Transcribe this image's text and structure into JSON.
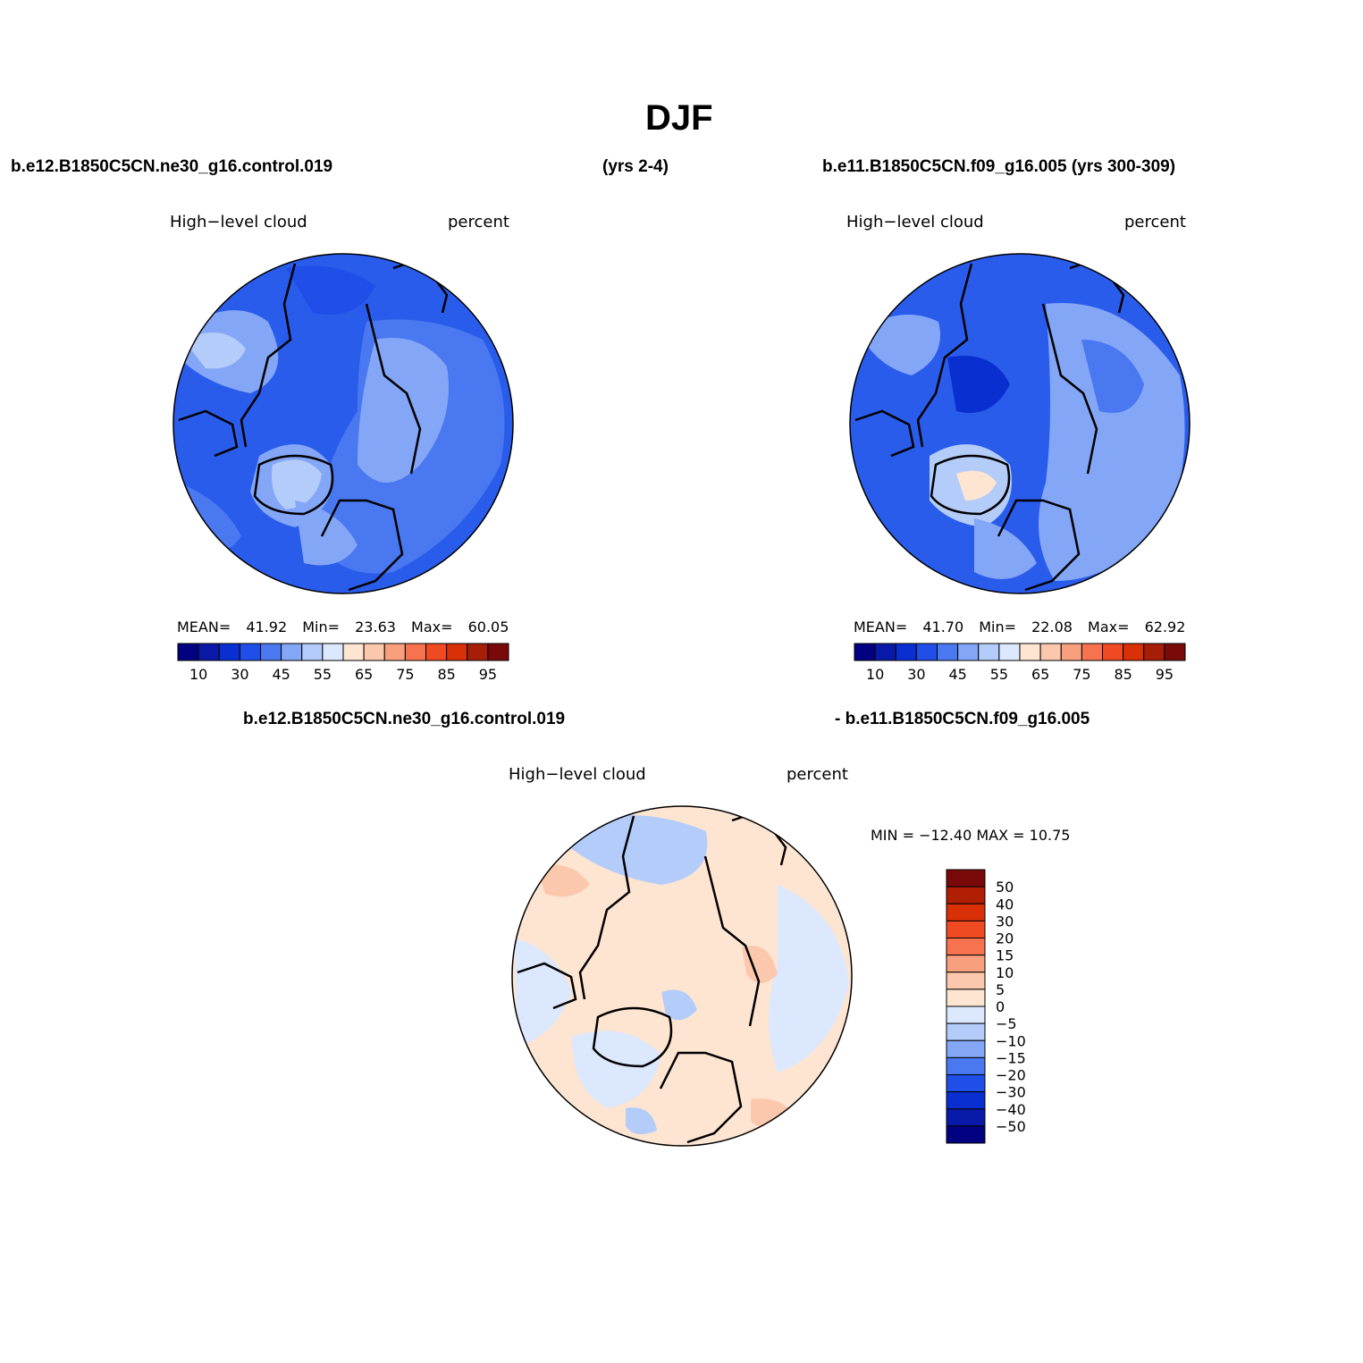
{
  "page_title": "DJF",
  "header": {
    "case_left": "b.e12.B1850C5CN.ne30_g16.control.019",
    "years_left": "(yrs 2-4)",
    "case_right": "b.e11.B1850C5CN.f09_g16.005 (yrs 300-309)"
  },
  "diff_header": {
    "left": "b.e12.B1850C5CN.ne30_g16.control.019",
    "right": "- b.e11.B1850C5CN.f09_g16.005"
  },
  "panels": [
    {
      "variable": "High−level cloud",
      "units": "percent",
      "mean_label": "MEAN=",
      "mean_value": "41.92",
      "min_label": "Min=",
      "min_value": "23.63",
      "max_label": "Max=",
      "max_value": "60.05"
    },
    {
      "variable": "High−level cloud",
      "units": "percent",
      "mean_label": "MEAN=",
      "mean_value": "41.70",
      "min_label": "Min=",
      "min_value": "22.08",
      "max_label": "Max=",
      "max_value": "62.92"
    }
  ],
  "diff_panel": {
    "variable": "High−level cloud",
    "units": "percent",
    "minmax_text": "MIN = −12.40 MAX =   10.75"
  },
  "horizontal_colorbar": {
    "colors": [
      "#000080",
      "#0a1aa8",
      "#0a2fd0",
      "#1f4fe8",
      "#4a78f0",
      "#84a6f6",
      "#b4ccfa",
      "#dbe8fd",
      "#fde5d2",
      "#fcc8ad",
      "#f8a07e",
      "#f7734f",
      "#f04a22",
      "#d93008",
      "#a61e08",
      "#7a0a0a"
    ],
    "labels": [
      "10",
      "30",
      "45",
      "55",
      "65",
      "75",
      "85",
      "95"
    ]
  },
  "vertical_colorbar": {
    "colors": [
      "#7a0a0a",
      "#b01e04",
      "#d93008",
      "#f04a22",
      "#f7734f",
      "#f8a07e",
      "#fcc8ad",
      "#fde5d2",
      "#dbe8fd",
      "#b4ccfa",
      "#84a6f6",
      "#4a78f0",
      "#1f4fe8",
      "#0a2fd0",
      "#0a1aa8",
      "#000080"
    ],
    "labels": [
      "50",
      "40",
      "30",
      "20",
      "15",
      "10",
      "5",
      "0",
      "−5",
      "−10",
      "−15",
      "−20",
      "−30",
      "−40",
      "−50"
    ]
  }
}
